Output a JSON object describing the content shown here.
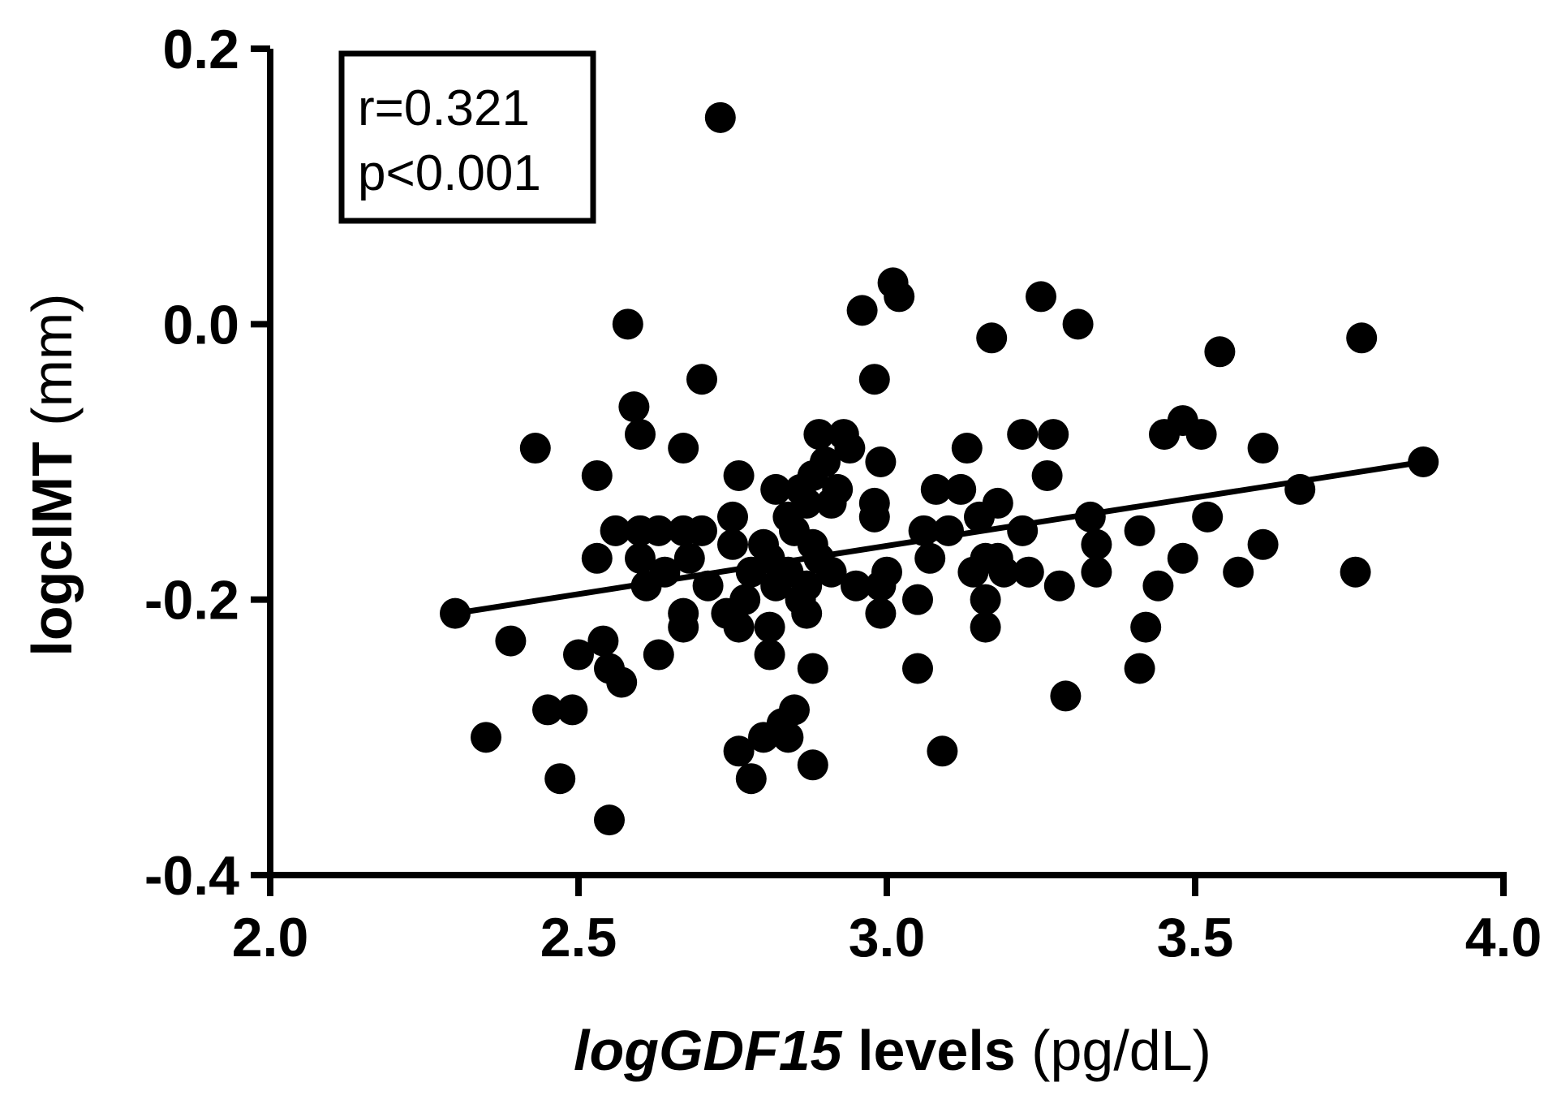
{
  "chart_data": {
    "type": "scatter",
    "title": "",
    "xlabel": {
      "italic_part": "logGDF15",
      "bold_part": " levels",
      "unit_part": " (pg/dL)"
    },
    "ylabel": {
      "bold_part": "logcIMT",
      "unit_part": " (mm)"
    },
    "xlim": [
      2.0,
      4.0
    ],
    "ylim": [
      -0.4,
      0.2
    ],
    "x_ticks": [
      2.0,
      2.5,
      3.0,
      3.5,
      4.0
    ],
    "x_tick_labels": [
      "2.0",
      "2.5",
      "3.0",
      "3.5",
      "4.0"
    ],
    "y_ticks": [
      0.2,
      0.0,
      -0.2,
      -0.4
    ],
    "y_tick_labels": [
      "0.2",
      "0.0",
      "-0.2",
      "-0.4"
    ],
    "stats": {
      "r_label": "r=0.321",
      "p_label": "p<0.001"
    },
    "regression_line": {
      "x": [
        2.3,
        3.87
      ],
      "y": [
        -0.21,
        -0.1
      ]
    },
    "points": [
      [
        2.73,
        0.15
      ],
      [
        3.01,
        0.03
      ],
      [
        3.02,
        0.02
      ],
      [
        2.96,
        0.01
      ],
      [
        3.25,
        0.02
      ],
      [
        3.31,
        0.0
      ],
      [
        2.58,
        0.0
      ],
      [
        3.17,
        -0.01
      ],
      [
        3.77,
        -0.01
      ],
      [
        3.54,
        -0.02
      ],
      [
        2.7,
        -0.04
      ],
      [
        2.98,
        -0.04
      ],
      [
        2.59,
        -0.06
      ],
      [
        2.6,
        -0.08
      ],
      [
        2.89,
        -0.08
      ],
      [
        2.93,
        -0.08
      ],
      [
        3.22,
        -0.08
      ],
      [
        3.27,
        -0.08
      ],
      [
        3.45,
        -0.08
      ],
      [
        3.48,
        -0.07
      ],
      [
        3.51,
        -0.08
      ],
      [
        2.43,
        -0.09
      ],
      [
        2.67,
        -0.09
      ],
      [
        2.94,
        -0.09
      ],
      [
        3.13,
        -0.09
      ],
      [
        3.61,
        -0.09
      ],
      [
        2.99,
        -0.1
      ],
      [
        3.87,
        -0.1
      ],
      [
        2.9,
        -0.1
      ],
      [
        2.88,
        -0.11
      ],
      [
        3.26,
        -0.11
      ],
      [
        2.53,
        -0.11
      ],
      [
        2.76,
        -0.11
      ],
      [
        2.82,
        -0.12
      ],
      [
        2.86,
        -0.12
      ],
      [
        2.92,
        -0.12
      ],
      [
        3.08,
        -0.12
      ],
      [
        3.12,
        -0.12
      ],
      [
        3.67,
        -0.12
      ],
      [
        2.98,
        -0.13
      ],
      [
        2.87,
        -0.13
      ],
      [
        3.18,
        -0.13
      ],
      [
        2.91,
        -0.13
      ],
      [
        2.75,
        -0.14
      ],
      [
        2.84,
        -0.14
      ],
      [
        2.98,
        -0.14
      ],
      [
        3.15,
        -0.14
      ],
      [
        3.33,
        -0.14
      ],
      [
        3.52,
        -0.14
      ],
      [
        2.56,
        -0.15
      ],
      [
        2.6,
        -0.15
      ],
      [
        2.63,
        -0.15
      ],
      [
        2.67,
        -0.15
      ],
      [
        2.7,
        -0.15
      ],
      [
        2.85,
        -0.15
      ],
      [
        3.06,
        -0.15
      ],
      [
        3.1,
        -0.15
      ],
      [
        3.22,
        -0.15
      ],
      [
        3.41,
        -0.15
      ],
      [
        2.75,
        -0.16
      ],
      [
        2.8,
        -0.16
      ],
      [
        2.88,
        -0.16
      ],
      [
        3.34,
        -0.16
      ],
      [
        3.61,
        -0.16
      ],
      [
        2.53,
        -0.17
      ],
      [
        2.6,
        -0.17
      ],
      [
        2.68,
        -0.17
      ],
      [
        2.81,
        -0.17
      ],
      [
        2.89,
        -0.17
      ],
      [
        3.07,
        -0.17
      ],
      [
        3.16,
        -0.17
      ],
      [
        3.18,
        -0.17
      ],
      [
        3.48,
        -0.17
      ],
      [
        2.64,
        -0.18
      ],
      [
        2.78,
        -0.18
      ],
      [
        2.84,
        -0.18
      ],
      [
        2.91,
        -0.18
      ],
      [
        3.0,
        -0.18
      ],
      [
        3.14,
        -0.18
      ],
      [
        3.19,
        -0.18
      ],
      [
        3.23,
        -0.18
      ],
      [
        3.34,
        -0.18
      ],
      [
        3.57,
        -0.18
      ],
      [
        3.76,
        -0.18
      ],
      [
        2.61,
        -0.19
      ],
      [
        2.71,
        -0.19
      ],
      [
        2.82,
        -0.19
      ],
      [
        2.87,
        -0.19
      ],
      [
        2.95,
        -0.19
      ],
      [
        2.99,
        -0.19
      ],
      [
        3.28,
        -0.19
      ],
      [
        3.44,
        -0.19
      ],
      [
        2.77,
        -0.2
      ],
      [
        2.86,
        -0.2
      ],
      [
        3.05,
        -0.2
      ],
      [
        3.16,
        -0.2
      ],
      [
        2.3,
        -0.21
      ],
      [
        2.67,
        -0.21
      ],
      [
        2.74,
        -0.21
      ],
      [
        2.87,
        -0.21
      ],
      [
        2.99,
        -0.21
      ],
      [
        2.76,
        -0.22
      ],
      [
        2.81,
        -0.22
      ],
      [
        2.67,
        -0.22
      ],
      [
        3.16,
        -0.22
      ],
      [
        3.42,
        -0.22
      ],
      [
        2.39,
        -0.23
      ],
      [
        2.54,
        -0.23
      ],
      [
        2.5,
        -0.24
      ],
      [
        2.63,
        -0.24
      ],
      [
        2.81,
        -0.24
      ],
      [
        2.55,
        -0.25
      ],
      [
        2.88,
        -0.25
      ],
      [
        3.05,
        -0.25
      ],
      [
        3.41,
        -0.25
      ],
      [
        2.57,
        -0.26
      ],
      [
        3.29,
        -0.27
      ],
      [
        2.45,
        -0.28
      ],
      [
        2.49,
        -0.28
      ],
      [
        2.85,
        -0.28
      ],
      [
        2.83,
        -0.29
      ],
      [
        2.8,
        -0.3
      ],
      [
        2.84,
        -0.3
      ],
      [
        2.35,
        -0.3
      ],
      [
        2.76,
        -0.31
      ],
      [
        3.09,
        -0.31
      ],
      [
        2.88,
        -0.32
      ],
      [
        2.47,
        -0.33
      ],
      [
        2.78,
        -0.33
      ],
      [
        2.55,
        -0.36
      ]
    ]
  }
}
